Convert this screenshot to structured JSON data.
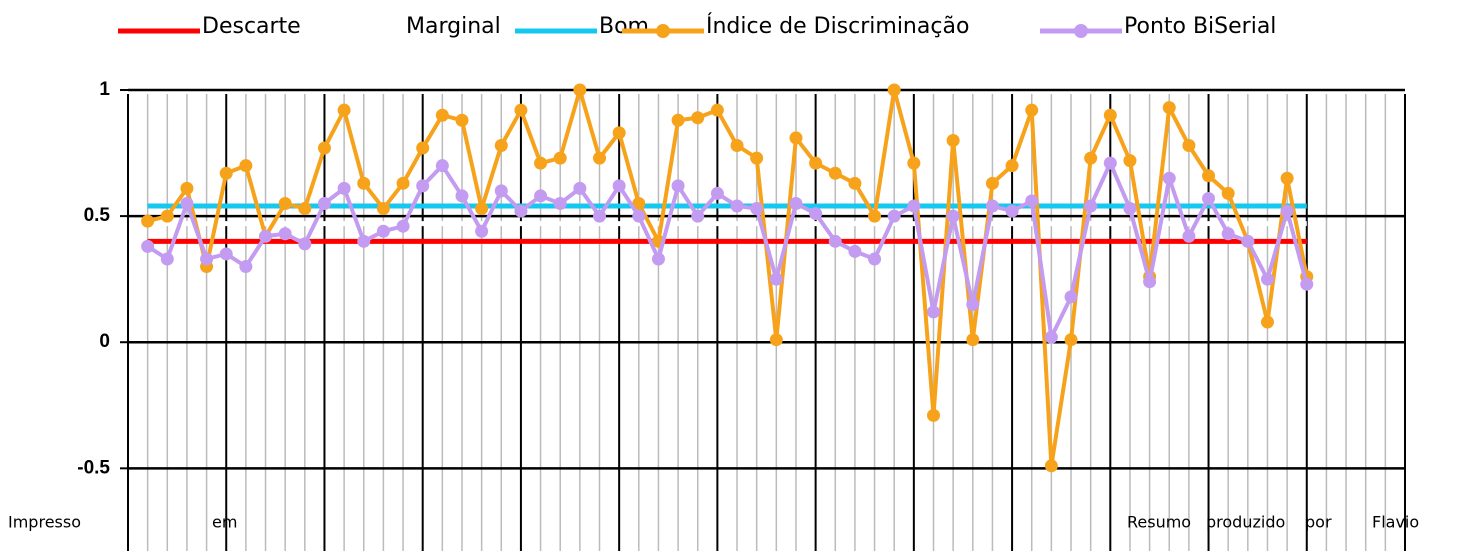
{
  "chart_data": {
    "type": "line",
    "categories": [
      null,
      null,
      null,
      null,
      null,
      null,
      null,
      null,
      null,
      null,
      null,
      null,
      null,
      null,
      null,
      null,
      null,
      null,
      null,
      null,
      null,
      null,
      null,
      null,
      null,
      null,
      null,
      null,
      null,
      null,
      null,
      null,
      null,
      null,
      null,
      null,
      null,
      null,
      null,
      null,
      null,
      null,
      null,
      null,
      null,
      null,
      null,
      null,
      null,
      null,
      null,
      null,
      null,
      null,
      null,
      null,
      null,
      null,
      null,
      null
    ],
    "series": [
      {
        "name": "Descarte",
        "color": "#ff0000",
        "marker": false,
        "values": [
          0.4,
          0.4,
          0.4,
          0.4,
          0.4,
          0.4,
          0.4,
          0.4,
          0.4,
          0.4,
          0.4,
          0.4,
          0.4,
          0.4,
          0.4,
          0.4,
          0.4,
          0.4,
          0.4,
          0.4,
          0.4,
          0.4,
          0.4,
          0.4,
          0.4,
          0.4,
          0.4,
          0.4,
          0.4,
          0.4,
          0.4,
          0.4,
          0.4,
          0.4,
          0.4,
          0.4,
          0.4,
          0.4,
          0.4,
          0.4,
          0.4,
          0.4,
          0.4,
          0.4,
          0.4,
          0.4,
          0.4,
          0.4,
          0.4,
          0.4,
          0.4,
          0.4,
          0.4,
          0.4,
          0.4,
          0.4,
          0.4,
          0.4,
          0.4,
          0.4
        ]
      },
      {
        "name": "Marginal",
        "color": "#ffffff",
        "marker": false,
        "values": [
          0.47,
          0.47,
          0.47,
          0.47,
          0.47,
          0.47,
          0.47,
          0.47,
          0.47,
          0.47,
          0.47,
          0.47,
          0.47,
          0.47,
          0.47,
          0.47,
          0.47,
          0.47,
          0.47,
          0.47,
          0.47,
          0.47,
          0.47,
          0.47,
          0.47,
          0.47,
          0.47,
          0.47,
          0.47,
          0.47,
          0.47,
          0.47,
          0.47,
          0.47,
          0.47,
          0.47,
          0.47,
          0.47,
          0.47,
          0.47,
          0.47,
          0.47,
          0.47,
          0.47,
          0.47,
          0.47,
          0.47,
          0.47,
          0.47,
          0.47,
          0.47,
          0.47,
          0.47,
          0.47,
          0.47,
          0.47,
          0.47,
          0.47,
          0.47,
          0.47
        ]
      },
      {
        "name": "Bom",
        "color": "#14c8f0",
        "marker": false,
        "values": [
          0.54,
          0.54,
          0.54,
          0.54,
          0.54,
          0.54,
          0.54,
          0.54,
          0.54,
          0.54,
          0.54,
          0.54,
          0.54,
          0.54,
          0.54,
          0.54,
          0.54,
          0.54,
          0.54,
          0.54,
          0.54,
          0.54,
          0.54,
          0.54,
          0.54,
          0.54,
          0.54,
          0.54,
          0.54,
          0.54,
          0.54,
          0.54,
          0.54,
          0.54,
          0.54,
          0.54,
          0.54,
          0.54,
          0.54,
          0.54,
          0.54,
          0.54,
          0.54,
          0.54,
          0.54,
          0.54,
          0.54,
          0.54,
          0.54,
          0.54,
          0.54,
          0.54,
          0.54,
          0.54,
          0.54,
          0.54,
          0.54,
          0.54,
          0.54,
          0.54
        ]
      },
      {
        "name": "Índice de Discriminação",
        "color": "#f7a21b",
        "marker": true,
        "values": [
          0.48,
          0.5,
          0.61,
          0.3,
          0.67,
          0.7,
          0.42,
          0.55,
          0.53,
          0.77,
          0.92,
          0.63,
          0.53,
          0.63,
          0.77,
          0.9,
          0.88,
          0.53,
          0.78,
          0.92,
          0.71,
          0.73,
          1.0,
          0.73,
          0.83,
          0.55,
          0.4,
          0.88,
          0.89,
          0.92,
          0.78,
          0.73,
          0.01,
          0.81,
          0.71,
          0.67,
          0.63,
          0.5,
          1.0,
          0.71,
          -0.29,
          0.8,
          0.01,
          0.63,
          0.7,
          0.92,
          -0.49,
          0.01,
          0.73,
          0.9,
          0.72,
          0.26,
          0.93,
          0.78,
          0.66,
          0.59,
          0.4,
          0.08,
          0.65,
          0.26
        ]
      },
      {
        "name": "Ponto BiSerial",
        "color": "#c39bf0",
        "marker": true,
        "values": [
          0.38,
          0.33,
          0.55,
          0.33,
          0.35,
          0.3,
          0.42,
          0.43,
          0.39,
          0.55,
          0.61,
          0.4,
          0.44,
          0.46,
          0.62,
          0.7,
          0.58,
          0.44,
          0.6,
          0.52,
          0.58,
          0.55,
          0.61,
          0.5,
          0.62,
          0.5,
          0.33,
          0.62,
          0.5,
          0.59,
          0.54,
          0.53,
          0.25,
          0.55,
          0.51,
          0.4,
          0.36,
          0.33,
          0.5,
          0.54,
          0.12,
          0.5,
          0.15,
          0.54,
          0.52,
          0.56,
          0.02,
          0.18,
          0.54,
          0.71,
          0.53,
          0.24,
          0.65,
          0.42,
          0.57,
          0.43,
          0.4,
          0.25,
          0.52,
          0.23
        ]
      }
    ],
    "ylim": [
      -0.8,
      1
    ],
    "yticks": [
      1,
      0.5,
      0,
      -0.5
    ],
    "grid": true
  },
  "footer": [
    "Impresso",
    "em",
    "Resumo",
    "produzido",
    "por",
    "Flavio"
  ]
}
